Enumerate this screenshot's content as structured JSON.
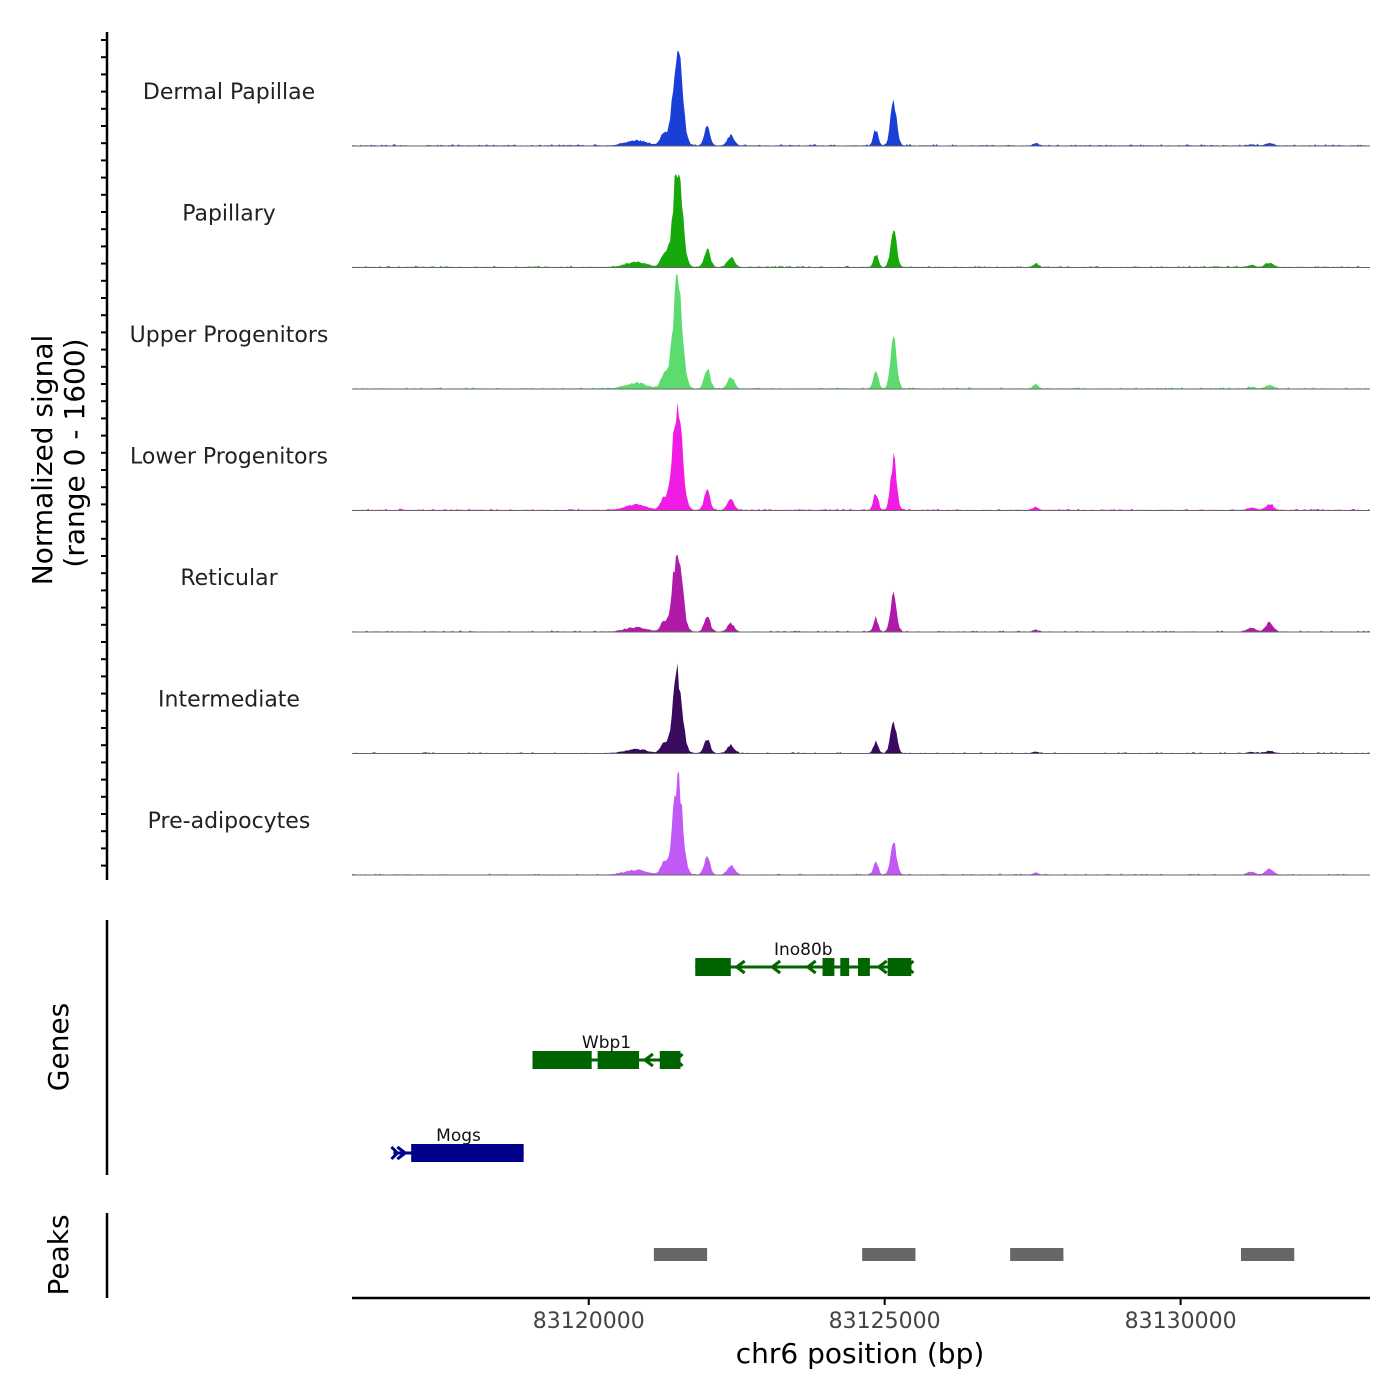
{
  "chart_data": {
    "type": "area",
    "chromosome": "chr6",
    "xlabel": "chr6 position (bp)",
    "xlim": [
      83116000,
      83133200
    ],
    "x_ticks": [
      83120000,
      83125000,
      83130000
    ],
    "x_tick_labels": [
      "83120000",
      "83125000",
      "83130000"
    ],
    "ylabel_line1": "Normalized signal",
    "ylabel_line2": "(range 0 - 1600)",
    "ylim": [
      0,
      1600
    ],
    "tracks": [
      {
        "name": "Dermal Papillae",
        "color": "#1a3fd6",
        "scale": 1.0,
        "p1": 0.88,
        "p2": 0.4,
        "p3": 0.02,
        "p4": 0.02
      },
      {
        "name": "Papillary",
        "color": "#17a80b",
        "scale": 0.95,
        "p1": 0.95,
        "p2": 0.35,
        "p3": 0.03,
        "p4": 0.04
      },
      {
        "name": "Upper Progenitors",
        "color": "#5cdc6e",
        "scale": 1.0,
        "p1": 1.0,
        "p2": 0.52,
        "p3": 0.04,
        "p4": 0.03
      },
      {
        "name": "Lower Progenitors",
        "color": "#f01ce4",
        "scale": 1.0,
        "p1": 0.95,
        "p2": 0.45,
        "p3": 0.03,
        "p4": 0.05
      },
      {
        "name": "Reticular",
        "color": "#b119a8",
        "scale": 0.82,
        "p1": 0.9,
        "p2": 0.4,
        "p3": 0.02,
        "p4": 0.1
      },
      {
        "name": "Intermediate",
        "color": "#3a0a5e",
        "scale": 0.7,
        "p1": 1.0,
        "p2": 0.4,
        "p3": 0.02,
        "p4": 0.03
      },
      {
        "name": "Pre-adipocytes",
        "color": "#c059f5",
        "scale": 0.85,
        "p1": 1.0,
        "p2": 0.35,
        "p3": 0.02,
        "p4": 0.06
      }
    ],
    "genes_label": "Genes",
    "genes": [
      {
        "name": "Ino80b",
        "start": 83121800,
        "end": 83125450,
        "strand": "-",
        "color": "#006400",
        "exons": [
          [
            83121800,
            83122400
          ],
          [
            83123950,
            83124150
          ],
          [
            83124250,
            83124400
          ],
          [
            83124550,
            83124750
          ],
          [
            83125050,
            83125450
          ]
        ]
      },
      {
        "name": "Wbp1",
        "start": 83119050,
        "end": 83121550,
        "strand": "-",
        "color": "#006400",
        "exons": [
          [
            83119050,
            83120050
          ],
          [
            83120150,
            83120850
          ],
          [
            83121200,
            83121550
          ]
        ]
      },
      {
        "name": "Mogs",
        "start": 83116700,
        "end": 83118900,
        "strand": "+",
        "color": "#00008b",
        "exons": [
          [
            83117000,
            83118900
          ]
        ]
      }
    ],
    "peaks_label": "Peaks",
    "peaks": [
      [
        83121100,
        83122000
      ],
      [
        83124620,
        83125520
      ],
      [
        83127120,
        83128020
      ],
      [
        83131020,
        83131920
      ]
    ]
  }
}
